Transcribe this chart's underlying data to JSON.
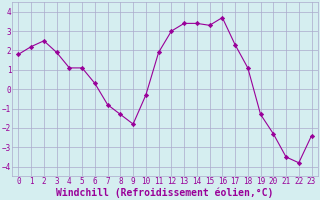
{
  "x": [
    0,
    1,
    2,
    3,
    4,
    5,
    6,
    7,
    8,
    9,
    10,
    11,
    12,
    13,
    14,
    15,
    16,
    17,
    18,
    19,
    20,
    21,
    22,
    23
  ],
  "y": [
    1.8,
    2.2,
    2.5,
    1.9,
    1.1,
    1.1,
    0.3,
    -0.8,
    -1.3,
    -1.8,
    -0.3,
    1.9,
    3.0,
    3.4,
    3.4,
    3.3,
    3.7,
    2.3,
    1.1,
    -1.3,
    -2.3,
    -3.5,
    -3.8,
    -2.4
  ],
  "line_color": "#990099",
  "marker": "D",
  "marker_size": 2.2,
  "bg_color": "#d5eef0",
  "grid_color": "#aaaacc",
  "xlabel": "Windchill (Refroidissement éolien,°C)",
  "xlabel_color": "#990099",
  "ylim": [
    -4.5,
    4.5
  ],
  "yticks": [
    -4,
    -3,
    -2,
    -1,
    0,
    1,
    2,
    3,
    4
  ],
  "xticks": [
    0,
    1,
    2,
    3,
    4,
    5,
    6,
    7,
    8,
    9,
    10,
    11,
    12,
    13,
    14,
    15,
    16,
    17,
    18,
    19,
    20,
    21,
    22,
    23
  ],
  "tick_label_color": "#990099",
  "tick_label_size": 5.5,
  "xlabel_size": 7.0,
  "line_width": 0.8
}
